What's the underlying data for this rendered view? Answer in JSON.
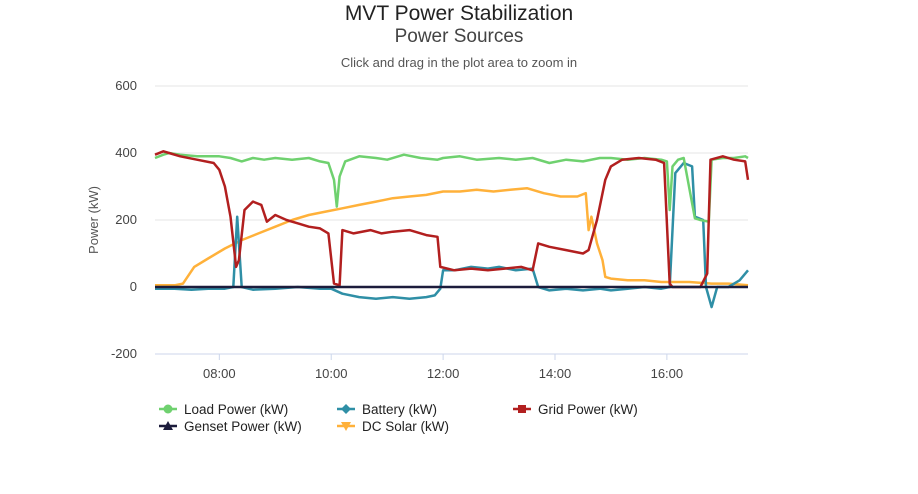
{
  "chart_data": {
    "type": "line",
    "title": "MVT Power Stabilization",
    "subtitle": "Power Sources",
    "hint": "Click and drag in the plot area to zoom in",
    "xlabel": "",
    "ylabel": "Power (kW)",
    "xlim": [
      6.85,
      17.45
    ],
    "ylim": [
      -200,
      600
    ],
    "yticks": [
      -200,
      0,
      200,
      400,
      600
    ],
    "xticks": [
      {
        "value": 8,
        "label": "08:00"
      },
      {
        "value": 10,
        "label": "10:00"
      },
      {
        "value": 12,
        "label": "12:00"
      },
      {
        "value": 14,
        "label": "14:00"
      },
      {
        "value": 16,
        "label": "16:00"
      }
    ],
    "series": [
      {
        "name": "Load Power (kW)",
        "color": "#6fd16f",
        "marker": "circle",
        "points": [
          [
            6.85,
            385
          ],
          [
            7.0,
            395
          ],
          [
            7.1,
            400
          ],
          [
            7.3,
            395
          ],
          [
            7.6,
            390
          ],
          [
            8.0,
            390
          ],
          [
            8.2,
            385
          ],
          [
            8.4,
            375
          ],
          [
            8.6,
            385
          ],
          [
            8.8,
            380
          ],
          [
            9.0,
            385
          ],
          [
            9.3,
            380
          ],
          [
            9.6,
            385
          ],
          [
            9.8,
            375
          ],
          [
            9.95,
            370
          ],
          [
            10.05,
            320
          ],
          [
            10.1,
            240
          ],
          [
            10.15,
            330
          ],
          [
            10.25,
            375
          ],
          [
            10.5,
            390
          ],
          [
            10.8,
            385
          ],
          [
            11.0,
            380
          ],
          [
            11.3,
            395
          ],
          [
            11.6,
            385
          ],
          [
            11.9,
            380
          ],
          [
            12.0,
            385
          ],
          [
            12.3,
            390
          ],
          [
            12.6,
            380
          ],
          [
            13.0,
            385
          ],
          [
            13.3,
            380
          ],
          [
            13.6,
            385
          ],
          [
            13.9,
            370
          ],
          [
            14.2,
            380
          ],
          [
            14.5,
            375
          ],
          [
            14.8,
            385
          ],
          [
            15.0,
            385
          ],
          [
            15.3,
            380
          ],
          [
            15.6,
            385
          ],
          [
            15.9,
            380
          ],
          [
            16.0,
            375
          ],
          [
            16.05,
            230
          ],
          [
            16.1,
            360
          ],
          [
            16.2,
            380
          ],
          [
            16.3,
            385
          ],
          [
            16.5,
            205
          ],
          [
            16.6,
            200
          ],
          [
            16.75,
            195
          ],
          [
            16.8,
            380
          ],
          [
            17.0,
            385
          ],
          [
            17.2,
            385
          ],
          [
            17.4,
            390
          ],
          [
            17.45,
            385
          ]
        ]
      },
      {
        "name": "Battery (kW)",
        "color": "#2f8fa6",
        "marker": "diamond",
        "points": [
          [
            6.85,
            -5
          ],
          [
            7.2,
            -5
          ],
          [
            7.5,
            -8
          ],
          [
            7.8,
            -5
          ],
          [
            8.1,
            -5
          ],
          [
            8.25,
            0
          ],
          [
            8.32,
            210
          ],
          [
            8.4,
            0
          ],
          [
            8.6,
            -8
          ],
          [
            9.0,
            -5
          ],
          [
            9.4,
            0
          ],
          [
            9.8,
            -5
          ],
          [
            10.0,
            -5
          ],
          [
            10.2,
            -20
          ],
          [
            10.5,
            -30
          ],
          [
            10.8,
            -35
          ],
          [
            11.1,
            -30
          ],
          [
            11.4,
            -35
          ],
          [
            11.7,
            -30
          ],
          [
            11.85,
            -25
          ],
          [
            11.95,
            -5
          ],
          [
            12.0,
            50
          ],
          [
            12.2,
            50
          ],
          [
            12.5,
            60
          ],
          [
            12.8,
            55
          ],
          [
            13.0,
            60
          ],
          [
            13.3,
            50
          ],
          [
            13.6,
            55
          ],
          [
            13.7,
            0
          ],
          [
            13.9,
            -10
          ],
          [
            14.2,
            -5
          ],
          [
            14.5,
            -10
          ],
          [
            14.8,
            -5
          ],
          [
            15.0,
            -10
          ],
          [
            15.3,
            -5
          ],
          [
            15.6,
            0
          ],
          [
            15.9,
            -5
          ],
          [
            16.05,
            0
          ],
          [
            16.15,
            340
          ],
          [
            16.3,
            370
          ],
          [
            16.45,
            360
          ],
          [
            16.5,
            210
          ],
          [
            16.65,
            200
          ],
          [
            16.7,
            0
          ],
          [
            16.8,
            -60
          ],
          [
            16.9,
            0
          ],
          [
            17.1,
            0
          ],
          [
            17.3,
            20
          ],
          [
            17.45,
            50
          ]
        ]
      },
      {
        "name": "Grid Power (kW)",
        "color": "#b21f1f",
        "marker": "square",
        "points": [
          [
            6.85,
            395
          ],
          [
            7.0,
            405
          ],
          [
            7.1,
            400
          ],
          [
            7.3,
            390
          ],
          [
            7.6,
            380
          ],
          [
            7.9,
            370
          ],
          [
            8.0,
            350
          ],
          [
            8.1,
            300
          ],
          [
            8.2,
            210
          ],
          [
            8.3,
            60
          ],
          [
            8.35,
            80
          ],
          [
            8.45,
            230
          ],
          [
            8.6,
            255
          ],
          [
            8.75,
            245
          ],
          [
            8.85,
            195
          ],
          [
            9.0,
            215
          ],
          [
            9.2,
            200
          ],
          [
            9.4,
            190
          ],
          [
            9.6,
            180
          ],
          [
            9.8,
            175
          ],
          [
            9.95,
            160
          ],
          [
            10.05,
            10
          ],
          [
            10.15,
            5
          ],
          [
            10.2,
            170
          ],
          [
            10.4,
            160
          ],
          [
            10.7,
            170
          ],
          [
            10.9,
            160
          ],
          [
            11.1,
            165
          ],
          [
            11.4,
            170
          ],
          [
            11.7,
            155
          ],
          [
            11.9,
            150
          ],
          [
            11.95,
            60
          ],
          [
            12.2,
            50
          ],
          [
            12.5,
            55
          ],
          [
            12.8,
            50
          ],
          [
            13.1,
            55
          ],
          [
            13.4,
            60
          ],
          [
            13.6,
            50
          ],
          [
            13.7,
            130
          ],
          [
            13.9,
            120
          ],
          [
            14.2,
            110
          ],
          [
            14.5,
            100
          ],
          [
            14.6,
            110
          ],
          [
            14.75,
            200
          ],
          [
            14.9,
            320
          ],
          [
            15.0,
            360
          ],
          [
            15.2,
            380
          ],
          [
            15.5,
            385
          ],
          [
            15.8,
            380
          ],
          [
            15.95,
            370
          ],
          [
            16.05,
            10
          ],
          [
            16.1,
            0
          ],
          [
            16.3,
            0
          ],
          [
            16.6,
            0
          ],
          [
            16.72,
            40
          ],
          [
            16.78,
            380
          ],
          [
            17.0,
            390
          ],
          [
            17.2,
            380
          ],
          [
            17.4,
            375
          ],
          [
            17.45,
            320
          ]
        ]
      },
      {
        "name": "Genset Power (kW)",
        "color": "#1c1c3c",
        "marker": "triangle",
        "points": [
          [
            6.85,
            0
          ],
          [
            17.45,
            0
          ]
        ]
      },
      {
        "name": "DC Solar (kW)",
        "color": "#ffb13a",
        "marker": "triangle-down",
        "points": [
          [
            6.85,
            5
          ],
          [
            7.2,
            5
          ],
          [
            7.35,
            10
          ],
          [
            7.55,
            60
          ],
          [
            7.8,
            85
          ],
          [
            8.1,
            115
          ],
          [
            8.4,
            140
          ],
          [
            8.7,
            160
          ],
          [
            9.0,
            180
          ],
          [
            9.3,
            200
          ],
          [
            9.6,
            215
          ],
          [
            9.9,
            225
          ],
          [
            10.2,
            235
          ],
          [
            10.5,
            245
          ],
          [
            10.8,
            255
          ],
          [
            11.1,
            265
          ],
          [
            11.4,
            270
          ],
          [
            11.7,
            275
          ],
          [
            12.0,
            285
          ],
          [
            12.3,
            285
          ],
          [
            12.6,
            290
          ],
          [
            12.9,
            285
          ],
          [
            13.2,
            290
          ],
          [
            13.5,
            295
          ],
          [
            13.8,
            280
          ],
          [
            14.1,
            270
          ],
          [
            14.4,
            270
          ],
          [
            14.55,
            280
          ],
          [
            14.6,
            170
          ],
          [
            14.65,
            210
          ],
          [
            14.75,
            130
          ],
          [
            14.85,
            80
          ],
          [
            14.9,
            30
          ],
          [
            15.0,
            25
          ],
          [
            15.3,
            20
          ],
          [
            15.6,
            20
          ],
          [
            15.9,
            15
          ],
          [
            16.1,
            15
          ],
          [
            16.4,
            15
          ],
          [
            16.8,
            10
          ],
          [
            17.1,
            10
          ],
          [
            17.45,
            5
          ]
        ]
      }
    ],
    "legend": {
      "position": "bottom"
    },
    "grid": {
      "y": true,
      "x": false
    }
  }
}
